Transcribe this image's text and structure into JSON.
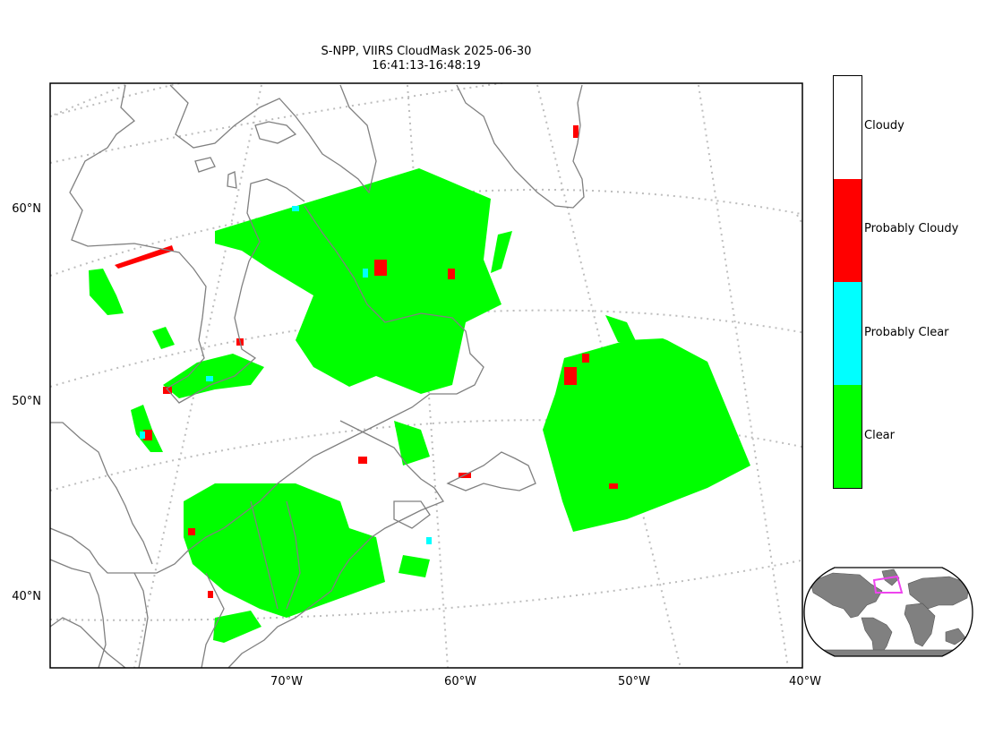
{
  "title": {
    "line1": "S-NPP, VIIRS CloudMask 2025-06-30",
    "line2": "16:41:13-16:48:19"
  },
  "map": {
    "lat_labels": [
      "60°N",
      "50°N",
      "40°N"
    ],
    "lon_labels": [
      "70°W",
      "60°W",
      "50°W",
      "40°W"
    ],
    "graticule_style": "dotted-gray",
    "coastline_color": "#808080"
  },
  "colorbar": {
    "entries": [
      {
        "label": "Cloudy",
        "color": "#ffffff"
      },
      {
        "label": "Probably Cloudy",
        "color": "#ff0000"
      },
      {
        "label": "Probably Clear",
        "color": "#00ffff"
      },
      {
        "label": "Clear",
        "color": "#00ff00"
      }
    ]
  },
  "inset": {
    "land_color": "#808080",
    "extent_box_color": "#ee44ee"
  }
}
